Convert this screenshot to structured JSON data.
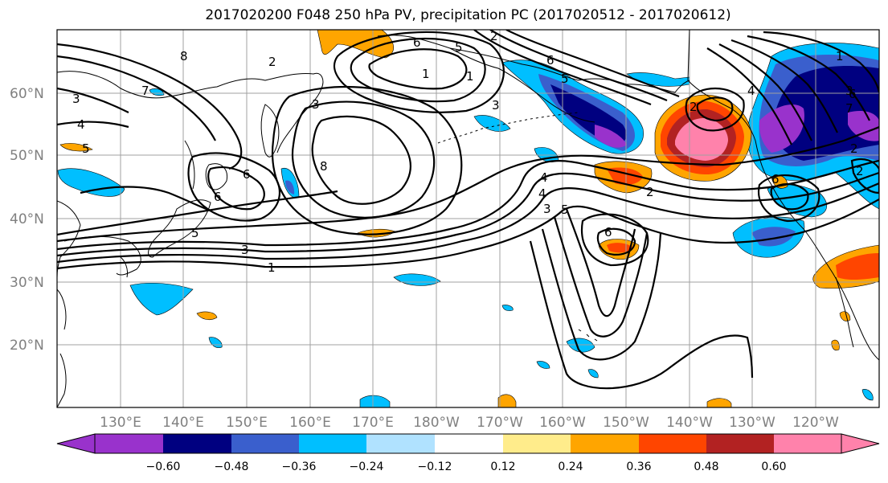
{
  "title": "2017020200 F048 250 hPa PV, precipitation PC (2017020512 - 2017020612)",
  "map": {
    "lat_labels": [
      "60°N",
      "50°N",
      "40°N",
      "30°N",
      "20°N"
    ],
    "lon_labels": [
      "130°E",
      "140°E",
      "150°E",
      "160°E",
      "170°E",
      "180°W",
      "170°W",
      "160°W",
      "150°W",
      "140°W",
      "130°W",
      "120°W"
    ],
    "pv_contour_labels": [
      "8",
      "7",
      "4",
      "5",
      "3",
      "2",
      "1",
      "6",
      "3",
      "2",
      "6",
      "5",
      "3",
      "1",
      "8",
      "6",
      "4",
      "5",
      "4",
      "3",
      "2",
      "1",
      "6",
      "5",
      "6",
      "5",
      "4",
      "3",
      "2",
      "1",
      "7",
      "2",
      "6",
      "3",
      "2",
      "6"
    ]
  },
  "colorbar": {
    "tick_labels": [
      "−0.60",
      "−0.48",
      "−0.36",
      "−0.24",
      "−0.12",
      "0.12",
      "0.24",
      "0.36",
      "0.48",
      "0.60"
    ],
    "colors": [
      "#9932cc",
      "#000080",
      "#3a5fcd",
      "#00bfff",
      "#b0e2ff",
      "#ffffff",
      "#ffec8b",
      "#ffa500",
      "#ff4500",
      "#b22222",
      "#ff82ab"
    ]
  }
}
